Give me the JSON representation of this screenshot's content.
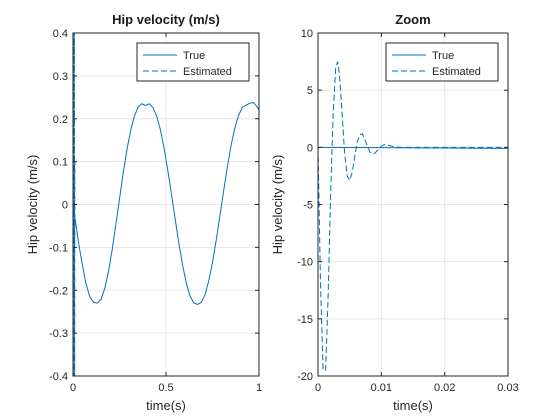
{
  "window": {
    "background": "#ffffff"
  },
  "colors": {
    "line": "#0072bd",
    "axis": "#262626",
    "grid": "#e6e6e6",
    "legend_border": "#262626"
  },
  "chart_data": [
    {
      "type": "line",
      "title": "Hip velocity (m/s)",
      "xlabel": "time(s)",
      "ylabel": "Hip velocity (m/s)",
      "xlim": [
        0,
        1
      ],
      "ylim": [
        -0.4,
        0.4
      ],
      "xticks": [
        0,
        0.5,
        1
      ],
      "xtick_labels": [
        "0",
        "0.5",
        "1"
      ],
      "yticks": [
        -0.4,
        -0.3,
        -0.2,
        -0.1,
        0,
        0.1,
        0.2,
        0.3,
        0.4
      ],
      "ytick_labels": [
        "-0.4",
        "-0.3",
        "-0.2",
        "-0.1",
        "0",
        "0.1",
        "0.2",
        "0.3",
        "0.4"
      ],
      "grid": true,
      "legend": "top-right",
      "series": [
        {
          "name": "True",
          "style": "solid",
          "x": [
            0,
            0.005,
            0.01,
            0.02,
            0.03,
            0.05,
            0.07,
            0.09,
            0.11,
            0.13,
            0.15,
            0.17,
            0.19,
            0.21,
            0.23,
            0.25,
            0.27,
            0.29,
            0.31,
            0.33,
            0.35,
            0.37,
            0.39,
            0.41,
            0.43,
            0.45,
            0.47,
            0.49,
            0.51,
            0.53,
            0.55,
            0.57,
            0.59,
            0.61,
            0.63,
            0.65,
            0.67,
            0.69,
            0.71,
            0.73,
            0.75,
            0.77,
            0.79,
            0.81,
            0.83,
            0.85,
            0.87,
            0.89,
            0.91,
            0.93,
            0.95,
            0.97,
            0.99,
            1.0
          ],
          "y": [
            0.0,
            -0.01,
            -0.03,
            -0.06,
            -0.09,
            -0.14,
            -0.185,
            -0.215,
            -0.228,
            -0.23,
            -0.222,
            -0.197,
            -0.158,
            -0.107,
            -0.048,
            0.013,
            0.074,
            0.128,
            0.173,
            0.206,
            0.227,
            0.235,
            0.231,
            0.235,
            0.226,
            0.206,
            0.174,
            0.131,
            0.079,
            0.022,
            -0.036,
            -0.093,
            -0.143,
            -0.185,
            -0.214,
            -0.23,
            -0.233,
            -0.228,
            -0.21,
            -0.178,
            -0.135,
            -0.083,
            -0.026,
            0.032,
            0.088,
            0.138,
            0.178,
            0.208,
            0.226,
            0.232,
            0.236,
            0.238,
            0.228,
            0.22
          ]
        },
        {
          "name": "Estimated",
          "style": "dashed",
          "x": [
            0,
            0.0005,
            0.001,
            0.0015,
            0.002,
            0.0025,
            0.003,
            0.0035,
            0.004,
            0.0045,
            0.005,
            0.0055,
            0.006,
            0.0065,
            0.007,
            0.0075,
            0.008,
            0.0085,
            0.009,
            0.0095,
            0.01
          ],
          "y": [
            0,
            -0.4,
            -0.4,
            -0.4,
            -0.2,
            0.4,
            0.4,
            0.4,
            0.4,
            0.2,
            -0.4,
            -0.4,
            -0.4,
            -0.1,
            0.4,
            0.4,
            0.2,
            -0.2,
            -0.4,
            -0.1,
            0.1
          ]
        }
      ]
    },
    {
      "type": "line",
      "title": "Zoom",
      "xlabel": "time(s)",
      "ylabel": "Hip velocity (m/s)",
      "xlim": [
        0,
        0.03
      ],
      "ylim": [
        -20,
        10
      ],
      "xticks": [
        0,
        0.01,
        0.02,
        0.03
      ],
      "xtick_labels": [
        "0",
        "0.01",
        "0.02",
        "0.03"
      ],
      "yticks": [
        -20,
        -15,
        -10,
        -5,
        0,
        5,
        10
      ],
      "ytick_labels": [
        "-20",
        "-15",
        "-10",
        "-5",
        "0",
        "5",
        "10"
      ],
      "grid": true,
      "legend": "top-right",
      "series": [
        {
          "name": "True",
          "style": "solid",
          "x": [
            0,
            0.005,
            0.01,
            0.015,
            0.02,
            0.025,
            0.03
          ],
          "y": [
            0.0,
            -0.01,
            -0.03,
            -0.045,
            -0.06,
            -0.075,
            -0.09
          ]
        },
        {
          "name": "Estimated",
          "style": "dashed",
          "x": [
            0,
            0.0004,
            0.0008,
            0.0012,
            0.0016,
            0.002,
            0.0024,
            0.0028,
            0.0031,
            0.0034,
            0.0038,
            0.0042,
            0.0046,
            0.005,
            0.0054,
            0.0058,
            0.0062,
            0.0066,
            0.007,
            0.0074,
            0.0078,
            0.0082,
            0.0086,
            0.009,
            0.0095,
            0.01,
            0.0105,
            0.011,
            0.012,
            0.013,
            0.015,
            0.02,
            0.03
          ],
          "y": [
            0,
            -12,
            -19.5,
            -19.5,
            -13,
            -4,
            3,
            7,
            7.5,
            6.3,
            3,
            -0.5,
            -2.5,
            -2.9,
            -2.2,
            -0.8,
            0.5,
            1.1,
            1.2,
            0.7,
            0.1,
            -0.4,
            -0.6,
            -0.5,
            -0.2,
            0.1,
            0.25,
            0.2,
            0.05,
            0,
            0,
            0,
            0
          ]
        }
      ]
    }
  ]
}
